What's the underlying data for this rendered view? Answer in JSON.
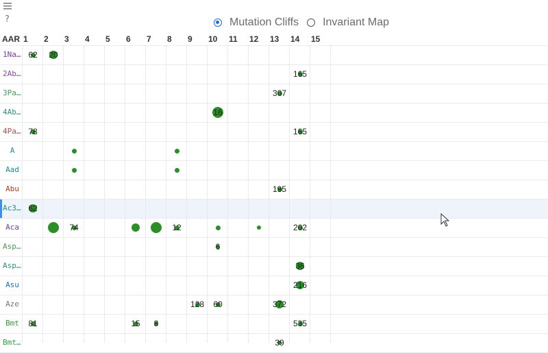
{
  "toolbar": {
    "menu_icon": "hamburger-icon",
    "help_icon": "question-icon"
  },
  "modes": [
    {
      "label": "Mutation Cliffs",
      "selected": true
    },
    {
      "label": "Invariant Map",
      "selected": false
    }
  ],
  "grid": {
    "corner": "AAR",
    "columns": [
      "1",
      "2",
      "3",
      "4",
      "5",
      "6",
      "7",
      "8",
      "9",
      "10",
      "11",
      "12",
      "13",
      "14",
      "15"
    ],
    "selected_row": 8,
    "rows": [
      {
        "label": "1Na…",
        "color": "#7a3d9e",
        "cells": [
          {
            "col": 1,
            "text": "62",
            "dot": "s"
          },
          {
            "col": 2,
            "text": "20",
            "dot": "m"
          }
        ]
      },
      {
        "label": "2Ab…",
        "color": "#8a49a6",
        "cells": [
          {
            "col": 14,
            "text": "165",
            "dot": "s"
          }
        ]
      },
      {
        "label": "3Pa…",
        "color": "#4a9a58",
        "cells": [
          {
            "col": 13,
            "text": "307",
            "dot": "s"
          }
        ]
      },
      {
        "label": "4Ab…",
        "color": "#2f8f78",
        "cells": [
          {
            "col": 10,
            "text": "16",
            "dot": "l"
          }
        ]
      },
      {
        "label": "4Pa…",
        "color": "#b34a4a",
        "cells": [
          {
            "col": 1,
            "text": "78",
            "dot": "s"
          },
          {
            "col": 14,
            "text": "165",
            "dot": "s"
          }
        ]
      },
      {
        "label": "A",
        "color": "#1e8f8f",
        "cells": [
          {
            "col": 3,
            "text": "",
            "dot": "s"
          },
          {
            "col": 8,
            "text": "",
            "dot": "s"
          }
        ]
      },
      {
        "label": "Aad",
        "color": "#1e8f8f",
        "cells": [
          {
            "col": 3,
            "text": "",
            "dot": "s"
          },
          {
            "col": 8,
            "text": "",
            "dot": "s"
          }
        ]
      },
      {
        "label": "Abu",
        "color": "#c0392b",
        "cells": [
          {
            "col": 13,
            "text": "195",
            "dot": "s"
          }
        ]
      },
      {
        "label": "Ac3…",
        "color": "#1e8f8f",
        "cells": [
          {
            "col": 1,
            "text": "62",
            "dot": "m"
          }
        ]
      },
      {
        "label": "Aca",
        "color": "#7a3d9e",
        "cells": [
          {
            "col": 2,
            "text": "",
            "dot": "l"
          },
          {
            "col": 3,
            "text": "74",
            "dot": "s"
          },
          {
            "col": 6,
            "text": "",
            "dot": "m"
          },
          {
            "col": 7,
            "text": "",
            "dot": "l"
          },
          {
            "col": 8,
            "text": "12",
            "dot": "s"
          },
          {
            "col": 10,
            "text": "",
            "dot": "s"
          },
          {
            "col": 12,
            "text": "",
            "dot": "xs"
          },
          {
            "col": 14,
            "text": "202",
            "dot": "s"
          }
        ]
      },
      {
        "label": "Asp…",
        "color": "#4a9a58",
        "cells": [
          {
            "col": 10,
            "text": "6",
            "dot": "xs"
          }
        ]
      },
      {
        "label": "Asp…",
        "color": "#2f8f78",
        "cells": [
          {
            "col": 14,
            "text": "36",
            "dot": "m"
          }
        ]
      },
      {
        "label": "Asu",
        "color": "#1e70b8",
        "cells": [
          {
            "col": 14,
            "text": "216",
            "dot": "m"
          }
        ]
      },
      {
        "label": "Aze",
        "color": "#777777",
        "cells": [
          {
            "col": 9,
            "text": "128",
            "dot": "s"
          },
          {
            "col": 10,
            "text": "60",
            "dot": "s"
          },
          {
            "col": 13,
            "text": "372",
            "dot": "m"
          }
        ]
      },
      {
        "label": "Bmt",
        "color": "#2e9e3e",
        "cells": [
          {
            "col": 1,
            "text": "81",
            "dot": "s"
          },
          {
            "col": 6,
            "text": "15",
            "dot": "s"
          },
          {
            "col": 7,
            "text": "8",
            "dot": "xs"
          },
          {
            "col": 14,
            "text": "535",
            "dot": "s"
          }
        ]
      },
      {
        "label": "Bmt…",
        "color": "#2e9e3e",
        "cells": [
          {
            "col": 13,
            "text": "39",
            "dot": "xs"
          }
        ]
      }
    ]
  },
  "colors": {
    "dot": "#2a8f26",
    "grid_line": "#e6e9ee",
    "selected_row": "#eef4f9",
    "selected_marker": "#3d8ee6"
  }
}
